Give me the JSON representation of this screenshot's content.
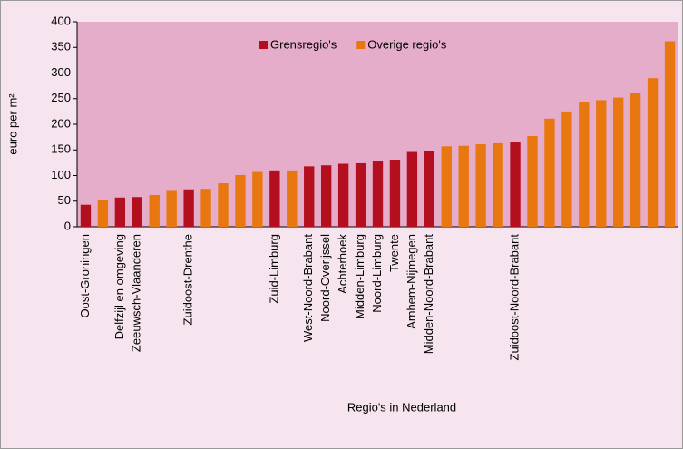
{
  "chart_data": {
    "type": "bar",
    "xlabel": "Regio's in Nederland",
    "ylabel": "euro per m²",
    "categories": [
      "Oost-Groningen",
      null,
      "Delfzijl en omgeving",
      "Zeeuwsch-Vlaanderen",
      null,
      null,
      "Zuidoost-Drenthe",
      null,
      null,
      null,
      null,
      "Zuid-Limburg",
      null,
      "West-Noord-Brabant",
      "Noord-Overijssel",
      "Achterhoek",
      "Midden-Limburg",
      "Noord-Limburg",
      "Twente",
      "Arnhem-Nijmegen",
      "Midden-Noord-Brabant",
      null,
      null,
      null,
      null,
      "Zuidoost-Noord-Brabant",
      null,
      null,
      null,
      null,
      null,
      null,
      null,
      null,
      null
    ],
    "series": [
      {
        "name": "Grensregio's",
        "color": "#b40f1e",
        "values": [
          43,
          null,
          57,
          58,
          null,
          null,
          73,
          null,
          null,
          null,
          null,
          110,
          null,
          118,
          120,
          123,
          124,
          128,
          131,
          146,
          147,
          null,
          null,
          null,
          null,
          165,
          null,
          null,
          null,
          null,
          null,
          null,
          null,
          null,
          null
        ]
      },
      {
        "name": "Overige regio's",
        "color": "#e8770f",
        "values": [
          null,
          53,
          null,
          null,
          62,
          70,
          null,
          74,
          85,
          101,
          107,
          null,
          110,
          null,
          null,
          null,
          null,
          null,
          null,
          null,
          null,
          157,
          158,
          161,
          163,
          null,
          177,
          211,
          225,
          243,
          247,
          252,
          262,
          290,
          362
        ]
      }
    ],
    "ylim": [
      0,
      400
    ],
    "yticks": [
      0,
      50,
      100,
      150,
      200,
      250,
      300,
      350,
      400
    ],
    "legend": "top"
  }
}
